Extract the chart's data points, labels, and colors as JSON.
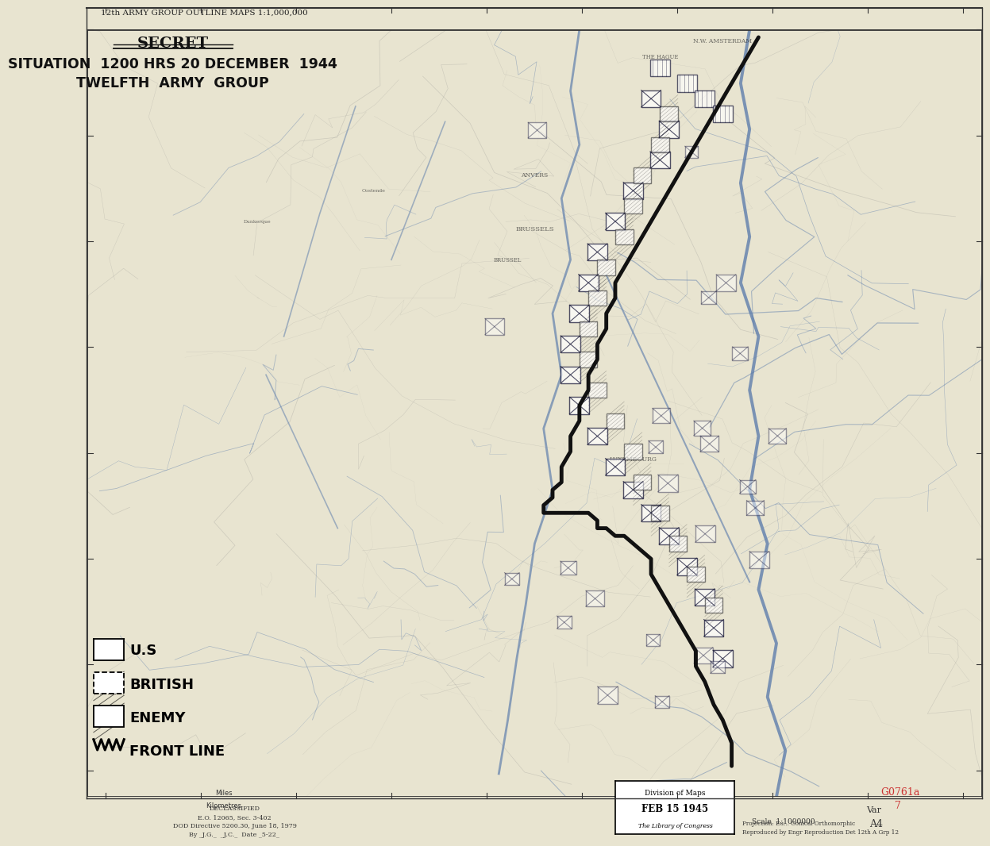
{
  "background_color": "#e8e4d0",
  "map_bg_color": "#e8e4d0",
  "border_color": "#333333",
  "title_line1": "SECRET",
  "title_line2": "SITUATION  1200 HRS 20 DECEMBER  1944",
  "title_line3": "TWELFTH  ARMY  GROUP",
  "header_text": "12th ARMY GROUP OUTLINE MAPS 1:1,000,000",
  "legend_us": "U.S",
  "legend_british": "BRITISH",
  "legend_enemy": "ENEMY",
  "legend_frontline": "FRONT LINE",
  "declassified_text": "DECLASSIFIED\nE.O. 12065, Sec. 3-402\nDOD Directive 5200.30, June 18, 1979\nBy _J.G._  _J.C._  Date _5-22_",
  "division_maps_line1": "Division of Maps",
  "division_maps_line2": "FEB 15 1945",
  "division_maps_line3": "The Library of Congress",
  "scale_text": "Scale  1:1000000",
  "projection_text": "Projection: Eu... Conical Orthomorphic\nReproduced by Engr Reproduction Det 12th A Grp 12",
  "var_text": "Var",
  "a4_text": "A4",
  "stamp_text": "G0761a",
  "stamp_num": "7",
  "miles_text": "Miles",
  "km_text": "Kilometres",
  "title_fontsize": 14,
  "header_fontsize": 7.5,
  "legend_fontsize": 13,
  "map_line_color": "#5577aa",
  "front_line_color": "#111111",
  "road_color": "#888888",
  "text_color": "#222222",
  "stamp_color": "#cc3333",
  "figsize": [
    12,
    11.11
  ]
}
